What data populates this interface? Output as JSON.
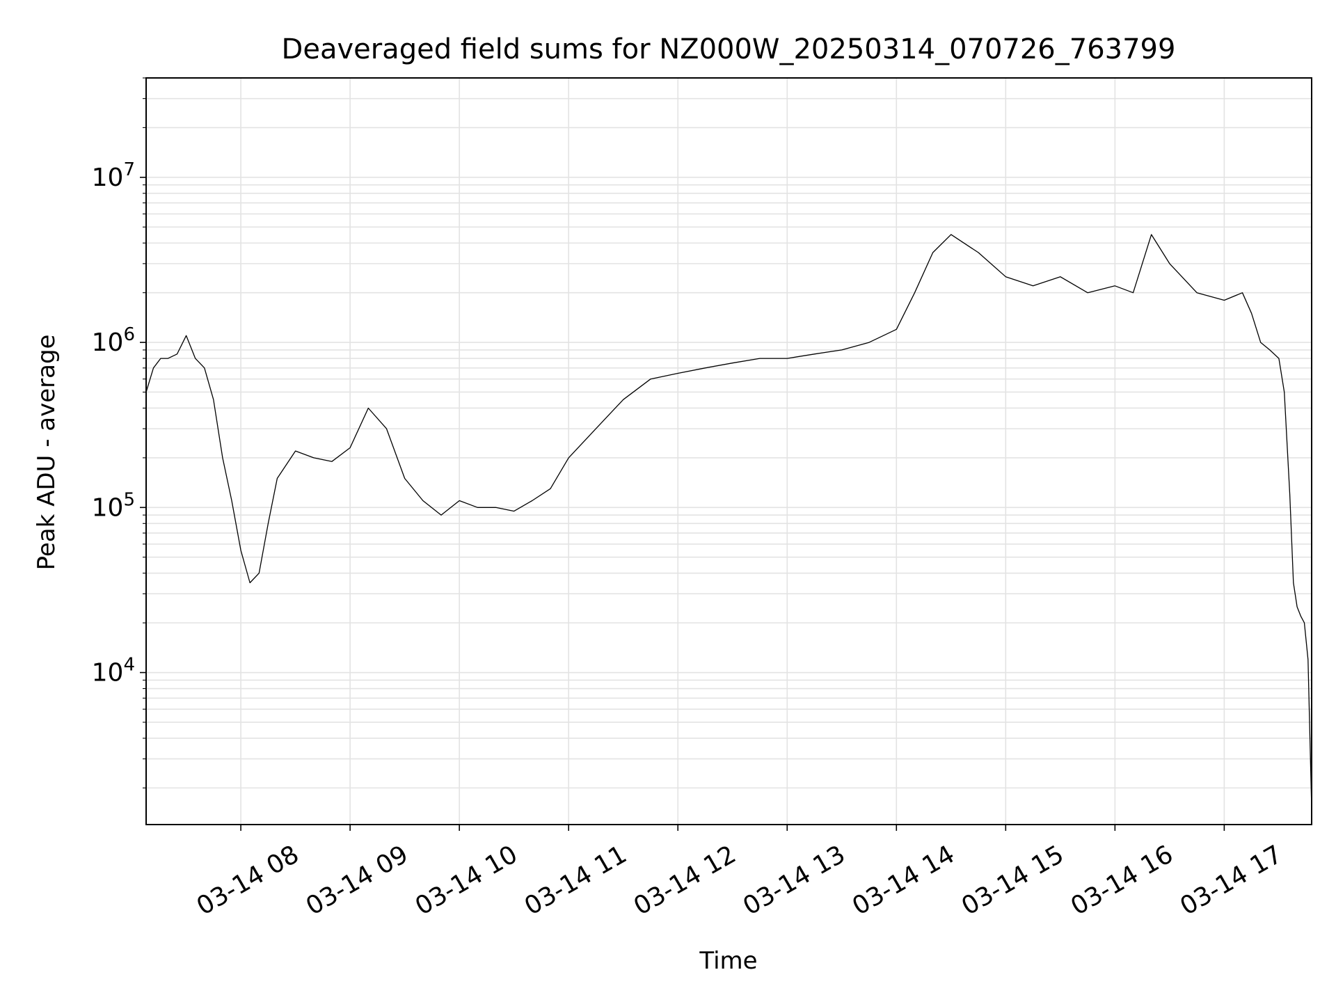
{
  "chart_data": {
    "type": "line",
    "title": "Deaveraged field sums for NZ000W_20250314_070726_763799",
    "xlabel": "Time",
    "ylabel": "Peak ADU - average",
    "yscale": "log",
    "ylim": [
      1200,
      40000000
    ],
    "xlim": [
      "2025-03-14 07:08",
      "2025-03-14 17:48"
    ],
    "x_ticks": [
      {
        "time": "2025-03-14 08:00",
        "label": "03-14 08"
      },
      {
        "time": "2025-03-14 09:00",
        "label": "03-14 09"
      },
      {
        "time": "2025-03-14 10:00",
        "label": "03-14 10"
      },
      {
        "time": "2025-03-14 11:00",
        "label": "03-14 11"
      },
      {
        "time": "2025-03-14 12:00",
        "label": "03-14 12"
      },
      {
        "time": "2025-03-14 13:00",
        "label": "03-14 13"
      },
      {
        "time": "2025-03-14 14:00",
        "label": "03-14 14"
      },
      {
        "time": "2025-03-14 15:00",
        "label": "03-14 15"
      },
      {
        "time": "2025-03-14 16:00",
        "label": "03-14 16"
      },
      {
        "time": "2025-03-14 17:00",
        "label": "03-14 17"
      }
    ],
    "y_ticks": [
      {
        "value": 10000,
        "base": "10",
        "exp": "4"
      },
      {
        "value": 100000,
        "base": "10",
        "exp": "5"
      },
      {
        "value": 1000000,
        "base": "10",
        "exp": "6"
      },
      {
        "value": 10000000,
        "base": "10",
        "exp": "7"
      }
    ],
    "grid": true,
    "series": [
      {
        "color": "#000000",
        "x": [
          "2025-03-14 07:08",
          "2025-03-14 07:12",
          "2025-03-14 07:16",
          "2025-03-14 07:20",
          "2025-03-14 07:25",
          "2025-03-14 07:30",
          "2025-03-14 07:35",
          "2025-03-14 07:40",
          "2025-03-14 07:45",
          "2025-03-14 07:50",
          "2025-03-14 07:55",
          "2025-03-14 08:00",
          "2025-03-14 08:05",
          "2025-03-14 08:10",
          "2025-03-14 08:15",
          "2025-03-14 08:20",
          "2025-03-14 08:30",
          "2025-03-14 08:40",
          "2025-03-14 08:50",
          "2025-03-14 09:00",
          "2025-03-14 09:10",
          "2025-03-14 09:20",
          "2025-03-14 09:30",
          "2025-03-14 09:40",
          "2025-03-14 09:50",
          "2025-03-14 10:00",
          "2025-03-14 10:10",
          "2025-03-14 10:20",
          "2025-03-14 10:30",
          "2025-03-14 10:40",
          "2025-03-14 10:50",
          "2025-03-14 11:00",
          "2025-03-14 11:15",
          "2025-03-14 11:30",
          "2025-03-14 11:45",
          "2025-03-14 12:00",
          "2025-03-14 12:15",
          "2025-03-14 12:30",
          "2025-03-14 12:45",
          "2025-03-14 13:00",
          "2025-03-14 13:15",
          "2025-03-14 13:30",
          "2025-03-14 13:45",
          "2025-03-14 14:00",
          "2025-03-14 14:10",
          "2025-03-14 14:20",
          "2025-03-14 14:30",
          "2025-03-14 14:45",
          "2025-03-14 15:00",
          "2025-03-14 15:15",
          "2025-03-14 15:30",
          "2025-03-14 15:45",
          "2025-03-14 16:00",
          "2025-03-14 16:10",
          "2025-03-14 16:20",
          "2025-03-14 16:30",
          "2025-03-14 16:45",
          "2025-03-14 17:00",
          "2025-03-14 17:10",
          "2025-03-14 17:15",
          "2025-03-14 17:20",
          "2025-03-14 17:25",
          "2025-03-14 17:30",
          "2025-03-14 17:33",
          "2025-03-14 17:36",
          "2025-03-14 17:38",
          "2025-03-14 17:40",
          "2025-03-14 17:42",
          "2025-03-14 17:44",
          "2025-03-14 17:46",
          "2025-03-14 17:48"
        ],
        "y": [
          500000,
          700000,
          800000,
          800000,
          850000,
          1100000,
          800000,
          700000,
          450000,
          200000,
          110000,
          55000,
          35000,
          40000,
          80000,
          150000,
          220000,
          200000,
          190000,
          230000,
          400000,
          300000,
          150000,
          110000,
          90000,
          110000,
          100000,
          100000,
          95000,
          110000,
          130000,
          200000,
          300000,
          450000,
          600000,
          650000,
          700000,
          750000,
          800000,
          800000,
          850000,
          900000,
          1000000,
          1200000,
          2000000,
          3500000,
          4500000,
          3500000,
          2500000,
          2200000,
          2500000,
          2000000,
          2200000,
          2000000,
          4500000,
          3000000,
          2000000,
          1800000,
          2000000,
          1500000,
          1000000,
          900000,
          800000,
          500000,
          120000,
          35000,
          25000,
          22000,
          20000,
          12000,
          1500
        ]
      }
    ]
  }
}
